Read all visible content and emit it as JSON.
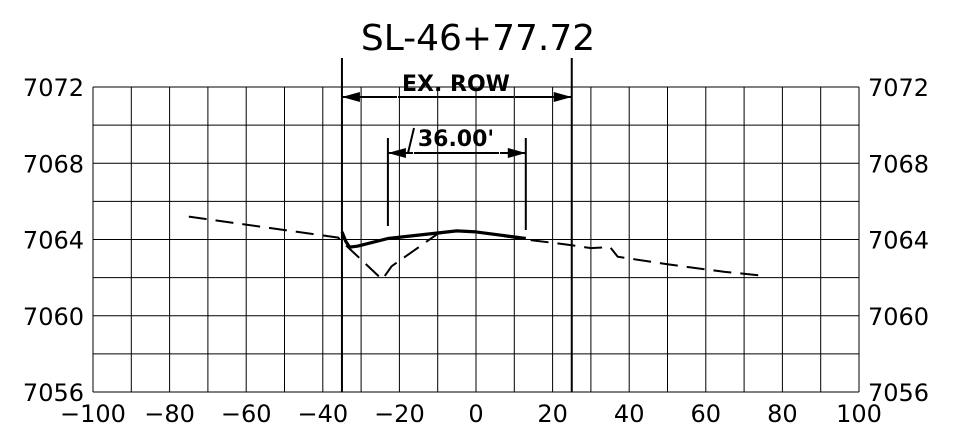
{
  "diagram": {
    "title": "SL-46+77.72",
    "type": "roadway cross-section",
    "x_axis": {
      "min": -100,
      "max": 100,
      "grid_step": 10,
      "tick_labels": [
        "-100",
        "-80",
        "-60",
        "-40",
        "-20",
        "0",
        "20",
        "40",
        "60",
        "80",
        "100"
      ]
    },
    "y_axis": {
      "min": 7056,
      "max": 7072,
      "grid_step": 2,
      "tick_labels": [
        "7072",
        "7068",
        "7064",
        "7060",
        "7056"
      ]
    },
    "row_label": "EX. ROW",
    "row_limits": [
      -35,
      25
    ],
    "width_label": "36.00'",
    "width_limits": [
      -23,
      13
    ],
    "existing_ground": [
      [
        -75,
        7065.2
      ],
      [
        -36,
        7064.1
      ],
      [
        -34,
        7063.7
      ],
      [
        -24.5,
        7061.9
      ],
      [
        -22,
        7062.6
      ],
      [
        -10,
        7064.3
      ],
      [
        -5,
        7064.45
      ],
      [
        0,
        7064.4
      ],
      [
        13,
        7064.0
      ],
      [
        25,
        7063.7
      ],
      [
        30,
        7063.55
      ],
      [
        35,
        7063.6
      ],
      [
        37,
        7063.1
      ],
      [
        50,
        7062.7
      ],
      [
        65,
        7062.3
      ],
      [
        75,
        7062.1
      ]
    ],
    "proposed_section": [
      [
        -35,
        7064.4
      ],
      [
        -34,
        7063.9
      ],
      [
        -33,
        7063.6
      ],
      [
        -31,
        7063.65
      ],
      [
        -23,
        7064.05
      ],
      [
        -5,
        7064.45
      ],
      [
        0,
        7064.4
      ],
      [
        13,
        7064.05
      ]
    ],
    "colors": {
      "ink": "#000000",
      "background": "#ffffff"
    }
  }
}
